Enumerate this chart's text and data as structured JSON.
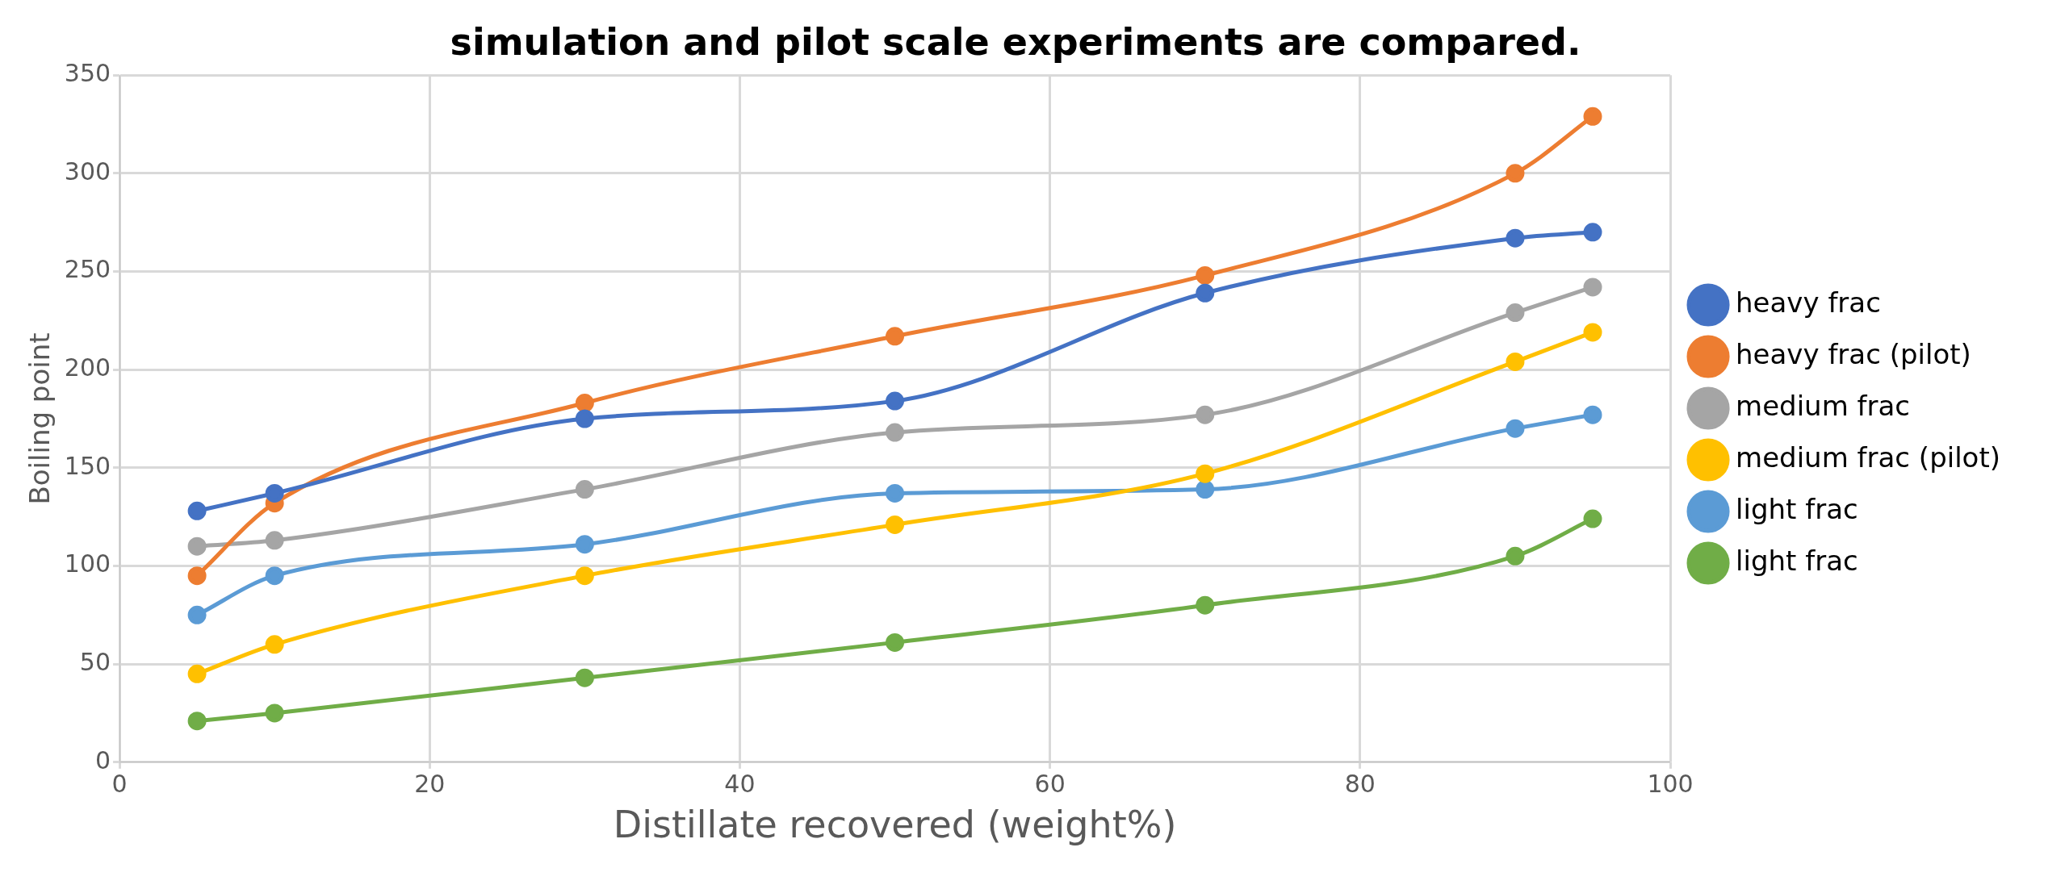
{
  "chart_data": {
    "type": "line",
    "title": "simulation and pilot scale experiments are compared.",
    "xlabel": "Distillate recovered (weight%)",
    "ylabel": "Boiling point",
    "x": [
      5,
      10,
      30,
      50,
      70,
      90,
      95
    ],
    "series": [
      {
        "name": "heavy frac",
        "color": "#4472c4",
        "values": [
          128,
          137,
          175,
          184,
          239,
          267,
          270
        ]
      },
      {
        "name": "heavy frac (pilot)",
        "color": "#ed7d31",
        "values": [
          95,
          132,
          183,
          217,
          248,
          300,
          329
        ]
      },
      {
        "name": "medium frac",
        "color": "#a5a5a5",
        "values": [
          110,
          113,
          139,
          168,
          177,
          229,
          242
        ]
      },
      {
        "name": "medium frac (pilot)",
        "color": "#ffc000",
        "values": [
          45,
          60,
          95,
          121,
          147,
          204,
          219
        ]
      },
      {
        "name": "light frac",
        "color": "#5b9bd5",
        "values": [
          75,
          95,
          111,
          137,
          139,
          170,
          177
        ]
      },
      {
        "name": "light frac",
        "color": "#70ad47",
        "values": [
          21,
          25,
          43,
          61,
          80,
          105,
          124
        ]
      }
    ],
    "xlim": [
      0,
      100
    ],
    "xticks": [
      0,
      20,
      40,
      60,
      80,
      100
    ],
    "ylim": [
      0,
      350
    ],
    "yticks": [
      0,
      50,
      100,
      150,
      200,
      250,
      300,
      350
    ],
    "grid": true,
    "legend": "right",
    "marker": "circle",
    "line_style": "solid"
  }
}
